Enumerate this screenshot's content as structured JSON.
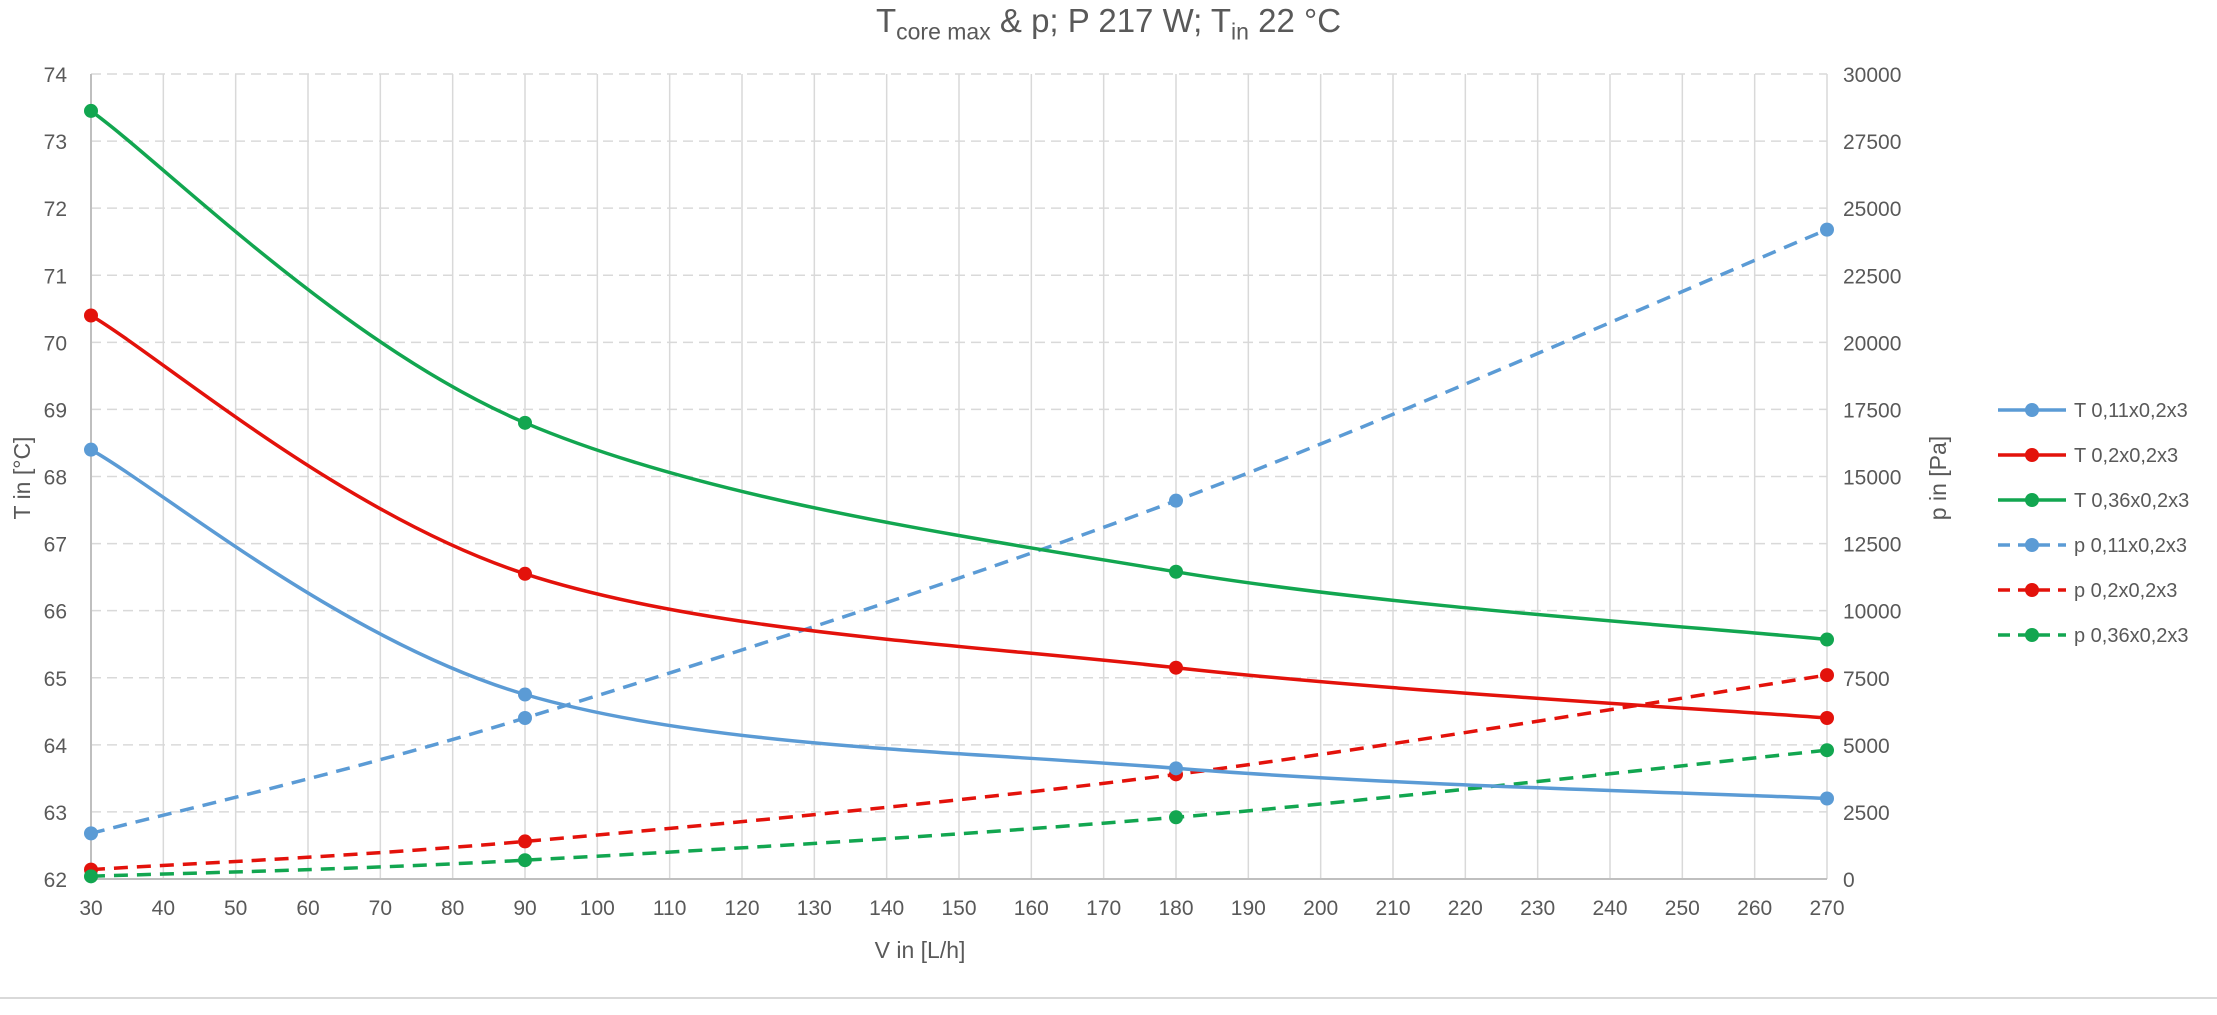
{
  "chart_data": {
    "type": "line",
    "title": {
      "main": "T",
      "main_sub": "core max",
      "mid": " & p; P 217 W; T",
      "mid_sub": "in",
      "end": " 22 °C"
    },
    "xlabel": "V in [L/h]",
    "ylabel_left": "T in [°C]",
    "ylabel_right": "p in [Pa]",
    "xlim": [
      30,
      270
    ],
    "x_ticks": [
      30,
      40,
      50,
      60,
      70,
      80,
      90,
      100,
      110,
      120,
      130,
      140,
      150,
      160,
      170,
      180,
      190,
      200,
      210,
      220,
      230,
      240,
      250,
      260,
      270
    ],
    "ylim_left": [
      62,
      74
    ],
    "y_ticks_left": [
      62,
      63,
      64,
      65,
      66,
      67,
      68,
      69,
      70,
      71,
      72,
      73,
      74
    ],
    "ylim_right": [
      0,
      30000
    ],
    "y_ticks_right": [
      0,
      2500,
      5000,
      7500,
      10000,
      12500,
      15000,
      17500,
      20000,
      22500,
      25000,
      27500,
      30000
    ],
    "grid": true,
    "legend_position": "right",
    "series": [
      {
        "name": "T 0,11x0,2x3",
        "axis": "left",
        "color": "#5B9BD5",
        "dashed": false,
        "x": [
          30,
          90,
          180,
          270
        ],
        "values": [
          68.4,
          64.75,
          63.65,
          63.2
        ]
      },
      {
        "name": "T 0,2x0,2x3",
        "axis": "left",
        "color": "#E3120B",
        "dashed": false,
        "x": [
          30,
          90,
          180,
          270
        ],
        "values": [
          70.4,
          66.55,
          65.15,
          64.4
        ]
      },
      {
        "name": "T 0,36x0,2x3",
        "axis": "left",
        "color": "#12A650",
        "dashed": false,
        "x": [
          30,
          90,
          180,
          270
        ],
        "values": [
          73.45,
          68.8,
          66.58,
          65.57
        ]
      },
      {
        "name": "p 0,11x0,2x3",
        "axis": "right",
        "color": "#5B9BD5",
        "dashed": true,
        "x": [
          30,
          90,
          180,
          270
        ],
        "values": [
          1700,
          6000,
          14100,
          24200
        ]
      },
      {
        "name": "p 0,2x0,2x3",
        "axis": "right",
        "color": "#E3120B",
        "dashed": true,
        "x": [
          30,
          90,
          180,
          270
        ],
        "values": [
          350,
          1400,
          3900,
          7600
        ]
      },
      {
        "name": "p 0,36x0,2x3",
        "axis": "right",
        "color": "#12A650",
        "dashed": true,
        "x": [
          30,
          90,
          180,
          270
        ],
        "values": [
          100,
          700,
          2300,
          4800
        ]
      }
    ]
  }
}
